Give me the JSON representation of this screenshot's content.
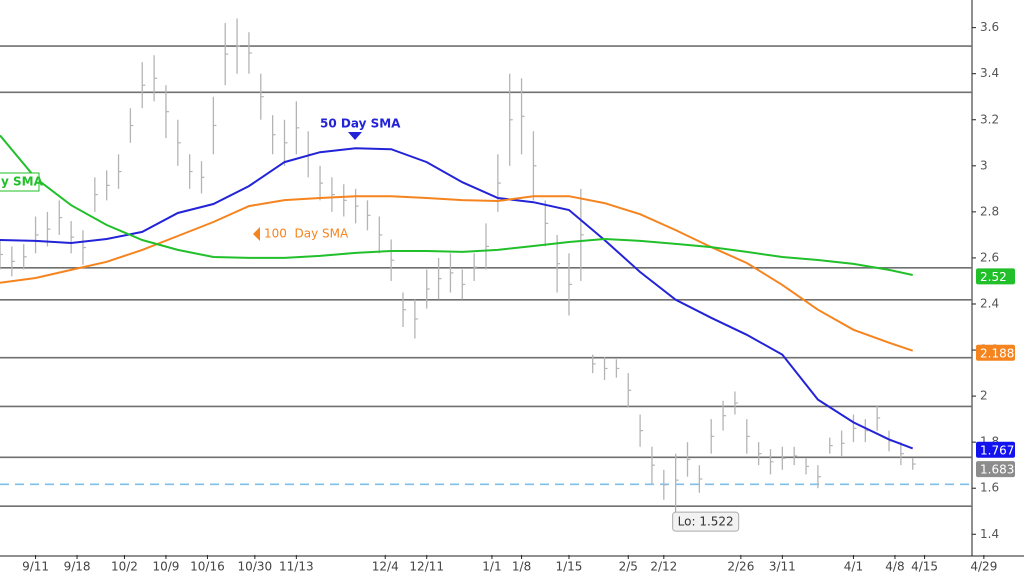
{
  "chart_data": {
    "type": "price",
    "xlim": [
      -6,
      158
    ],
    "ylim": [
      1.31,
      3.72
    ],
    "yticks": [
      1.4,
      1.6,
      1.8,
      2,
      2.2,
      2.4,
      2.6,
      2.8,
      3,
      3.2,
      3.4,
      3.6
    ],
    "xticks": [
      {
        "value": 0,
        "label": "9/11"
      },
      {
        "value": 7,
        "label": "9/18"
      },
      {
        "value": 15,
        "label": "10/2"
      },
      {
        "value": 22,
        "label": "10/9"
      },
      {
        "value": 29,
        "label": "10/16"
      },
      {
        "value": 37,
        "label": "10/30"
      },
      {
        "value": 44,
        "label": "11/13"
      },
      {
        "value": 59,
        "label": "12/4"
      },
      {
        "value": 66,
        "label": "12/11"
      },
      {
        "value": 77,
        "label": "1/1"
      },
      {
        "value": 82,
        "label": "1/8"
      },
      {
        "value": 90,
        "label": "1/15"
      },
      {
        "value": 100,
        "label": "2/5"
      },
      {
        "value": 106,
        "label": "2/12"
      },
      {
        "value": 119,
        "label": "2/26"
      },
      {
        "value": 126,
        "label": "3/11"
      },
      {
        "value": 138,
        "label": "4/1"
      },
      {
        "value": 145,
        "label": "4/8"
      },
      {
        "value": 150,
        "label": "4/15"
      },
      {
        "value": 160,
        "label": "4/29"
      }
    ],
    "price": {
      "color": "#b4b4b4",
      "x": [
        -6,
        -4,
        -2,
        0,
        2,
        4,
        6,
        8,
        10,
        12,
        14,
        16,
        18,
        20,
        22,
        24,
        26,
        28,
        30,
        32,
        34,
        36,
        38,
        40,
        42,
        44,
        46,
        48,
        50,
        52,
        54,
        56,
        58,
        60,
        62,
        64,
        66,
        68,
        70,
        72,
        74,
        76,
        78,
        80,
        82,
        84,
        86,
        88,
        90,
        92,
        94,
        96,
        98,
        100,
        102,
        104,
        106,
        108,
        110,
        112,
        114,
        116,
        118,
        120,
        122,
        124,
        126,
        128,
        130,
        132,
        134,
        136,
        138,
        140,
        142,
        144,
        146,
        148
      ],
      "low": [
        2.55,
        2.52,
        2.55,
        2.62,
        2.65,
        2.7,
        2.62,
        2.57,
        2.8,
        2.85,
        2.9,
        3.1,
        3.25,
        3.28,
        3.12,
        3.0,
        2.9,
        2.88,
        3.05,
        3.35,
        3.4,
        3.4,
        3.2,
        3.05,
        3.0,
        3.05,
        2.95,
        2.85,
        2.8,
        2.78,
        2.75,
        2.72,
        2.62,
        2.5,
        2.3,
        2.25,
        2.38,
        2.42,
        2.45,
        2.42,
        2.5,
        2.55,
        2.8,
        3.0,
        3.05,
        2.85,
        2.65,
        2.45,
        2.35,
        2.5,
        2.1,
        2.07,
        2.08,
        1.95,
        1.78,
        1.62,
        1.55,
        1.52,
        1.65,
        1.58,
        1.75,
        1.85,
        1.92,
        1.75,
        1.7,
        1.66,
        1.68,
        1.7,
        1.66,
        1.6,
        1.75,
        1.74,
        1.8,
        1.8,
        1.85,
        1.76,
        1.7,
        1.68
      ],
      "high": [
        2.68,
        2.65,
        2.66,
        2.78,
        2.8,
        2.85,
        2.76,
        2.72,
        2.95,
        2.98,
        3.05,
        3.25,
        3.45,
        3.48,
        3.35,
        3.2,
        3.05,
        3.02,
        3.3,
        3.62,
        3.64,
        3.58,
        3.4,
        3.22,
        3.2,
        3.28,
        3.15,
        3.0,
        2.95,
        2.92,
        2.9,
        2.85,
        2.78,
        2.68,
        2.45,
        2.42,
        2.55,
        2.6,
        2.62,
        2.55,
        2.62,
        2.75,
        3.05,
        3.4,
        3.38,
        3.15,
        2.85,
        2.7,
        2.62,
        2.9,
        2.18,
        2.17,
        2.16,
        2.1,
        1.92,
        1.78,
        1.68,
        1.75,
        1.8,
        1.7,
        1.9,
        1.98,
        2.02,
        1.9,
        1.8,
        1.77,
        1.78,
        1.78,
        1.73,
        1.7,
        1.82,
        1.85,
        1.92,
        1.9,
        1.96,
        1.85,
        1.8,
        1.73
      ]
    },
    "sma_x": [
      -6,
      0,
      6,
      12,
      18,
      24,
      30,
      36,
      42,
      48,
      54,
      60,
      66,
      72,
      78,
      84,
      90,
      96,
      102,
      108,
      114,
      120,
      126,
      132,
      138,
      144,
      148
    ],
    "series": [
      {
        "name": "50 Day SMA",
        "color": "#2323d8",
        "values": [
          2.678,
          2.674,
          2.665,
          2.682,
          2.713,
          2.795,
          2.834,
          2.912,
          3.016,
          3.059,
          3.076,
          3.072,
          3.016,
          2.929,
          2.86,
          2.842,
          2.808,
          2.678,
          2.539,
          2.418,
          2.34,
          2.266,
          2.18,
          1.985,
          1.886,
          1.812,
          1.773
        ]
      },
      {
        "name": "100  Day SMA",
        "color": "#f5841f",
        "values": [
          2.492,
          2.513,
          2.548,
          2.583,
          2.635,
          2.695,
          2.756,
          2.825,
          2.851,
          2.86,
          2.868,
          2.868,
          2.86,
          2.851,
          2.847,
          2.868,
          2.868,
          2.838,
          2.79,
          2.721,
          2.647,
          2.578,
          2.483,
          2.375,
          2.288,
          2.232,
          2.197
        ]
      },
      {
        "name": "y SMA",
        "color": "#21c02a",
        "values": [
          3.132,
          2.946,
          2.829,
          2.743,
          2.678,
          2.635,
          2.604,
          2.6,
          2.6,
          2.609,
          2.622,
          2.63,
          2.63,
          2.626,
          2.635,
          2.652,
          2.669,
          2.682,
          2.674,
          2.661,
          2.647,
          2.626,
          2.604,
          2.591,
          2.574,
          2.548,
          2.526
        ]
      }
    ],
    "levels": [
      3.52,
      3.319,
      2.557,
      2.418,
      2.167,
      1.955,
      1.734,
      1.522
    ],
    "level_color": "#707070",
    "support": 1.617,
    "support_color": "#7fbfe8",
    "last_values": [
      {
        "value": 2.52,
        "color": "#21c02a"
      },
      {
        "value": 2.188,
        "color": "#f5841f"
      },
      {
        "value": 1.767,
        "color": "#1212ee"
      },
      {
        "value": 1.683,
        "color": "#8c8c8c"
      }
    ],
    "annotation": "Lo: 1.522"
  }
}
